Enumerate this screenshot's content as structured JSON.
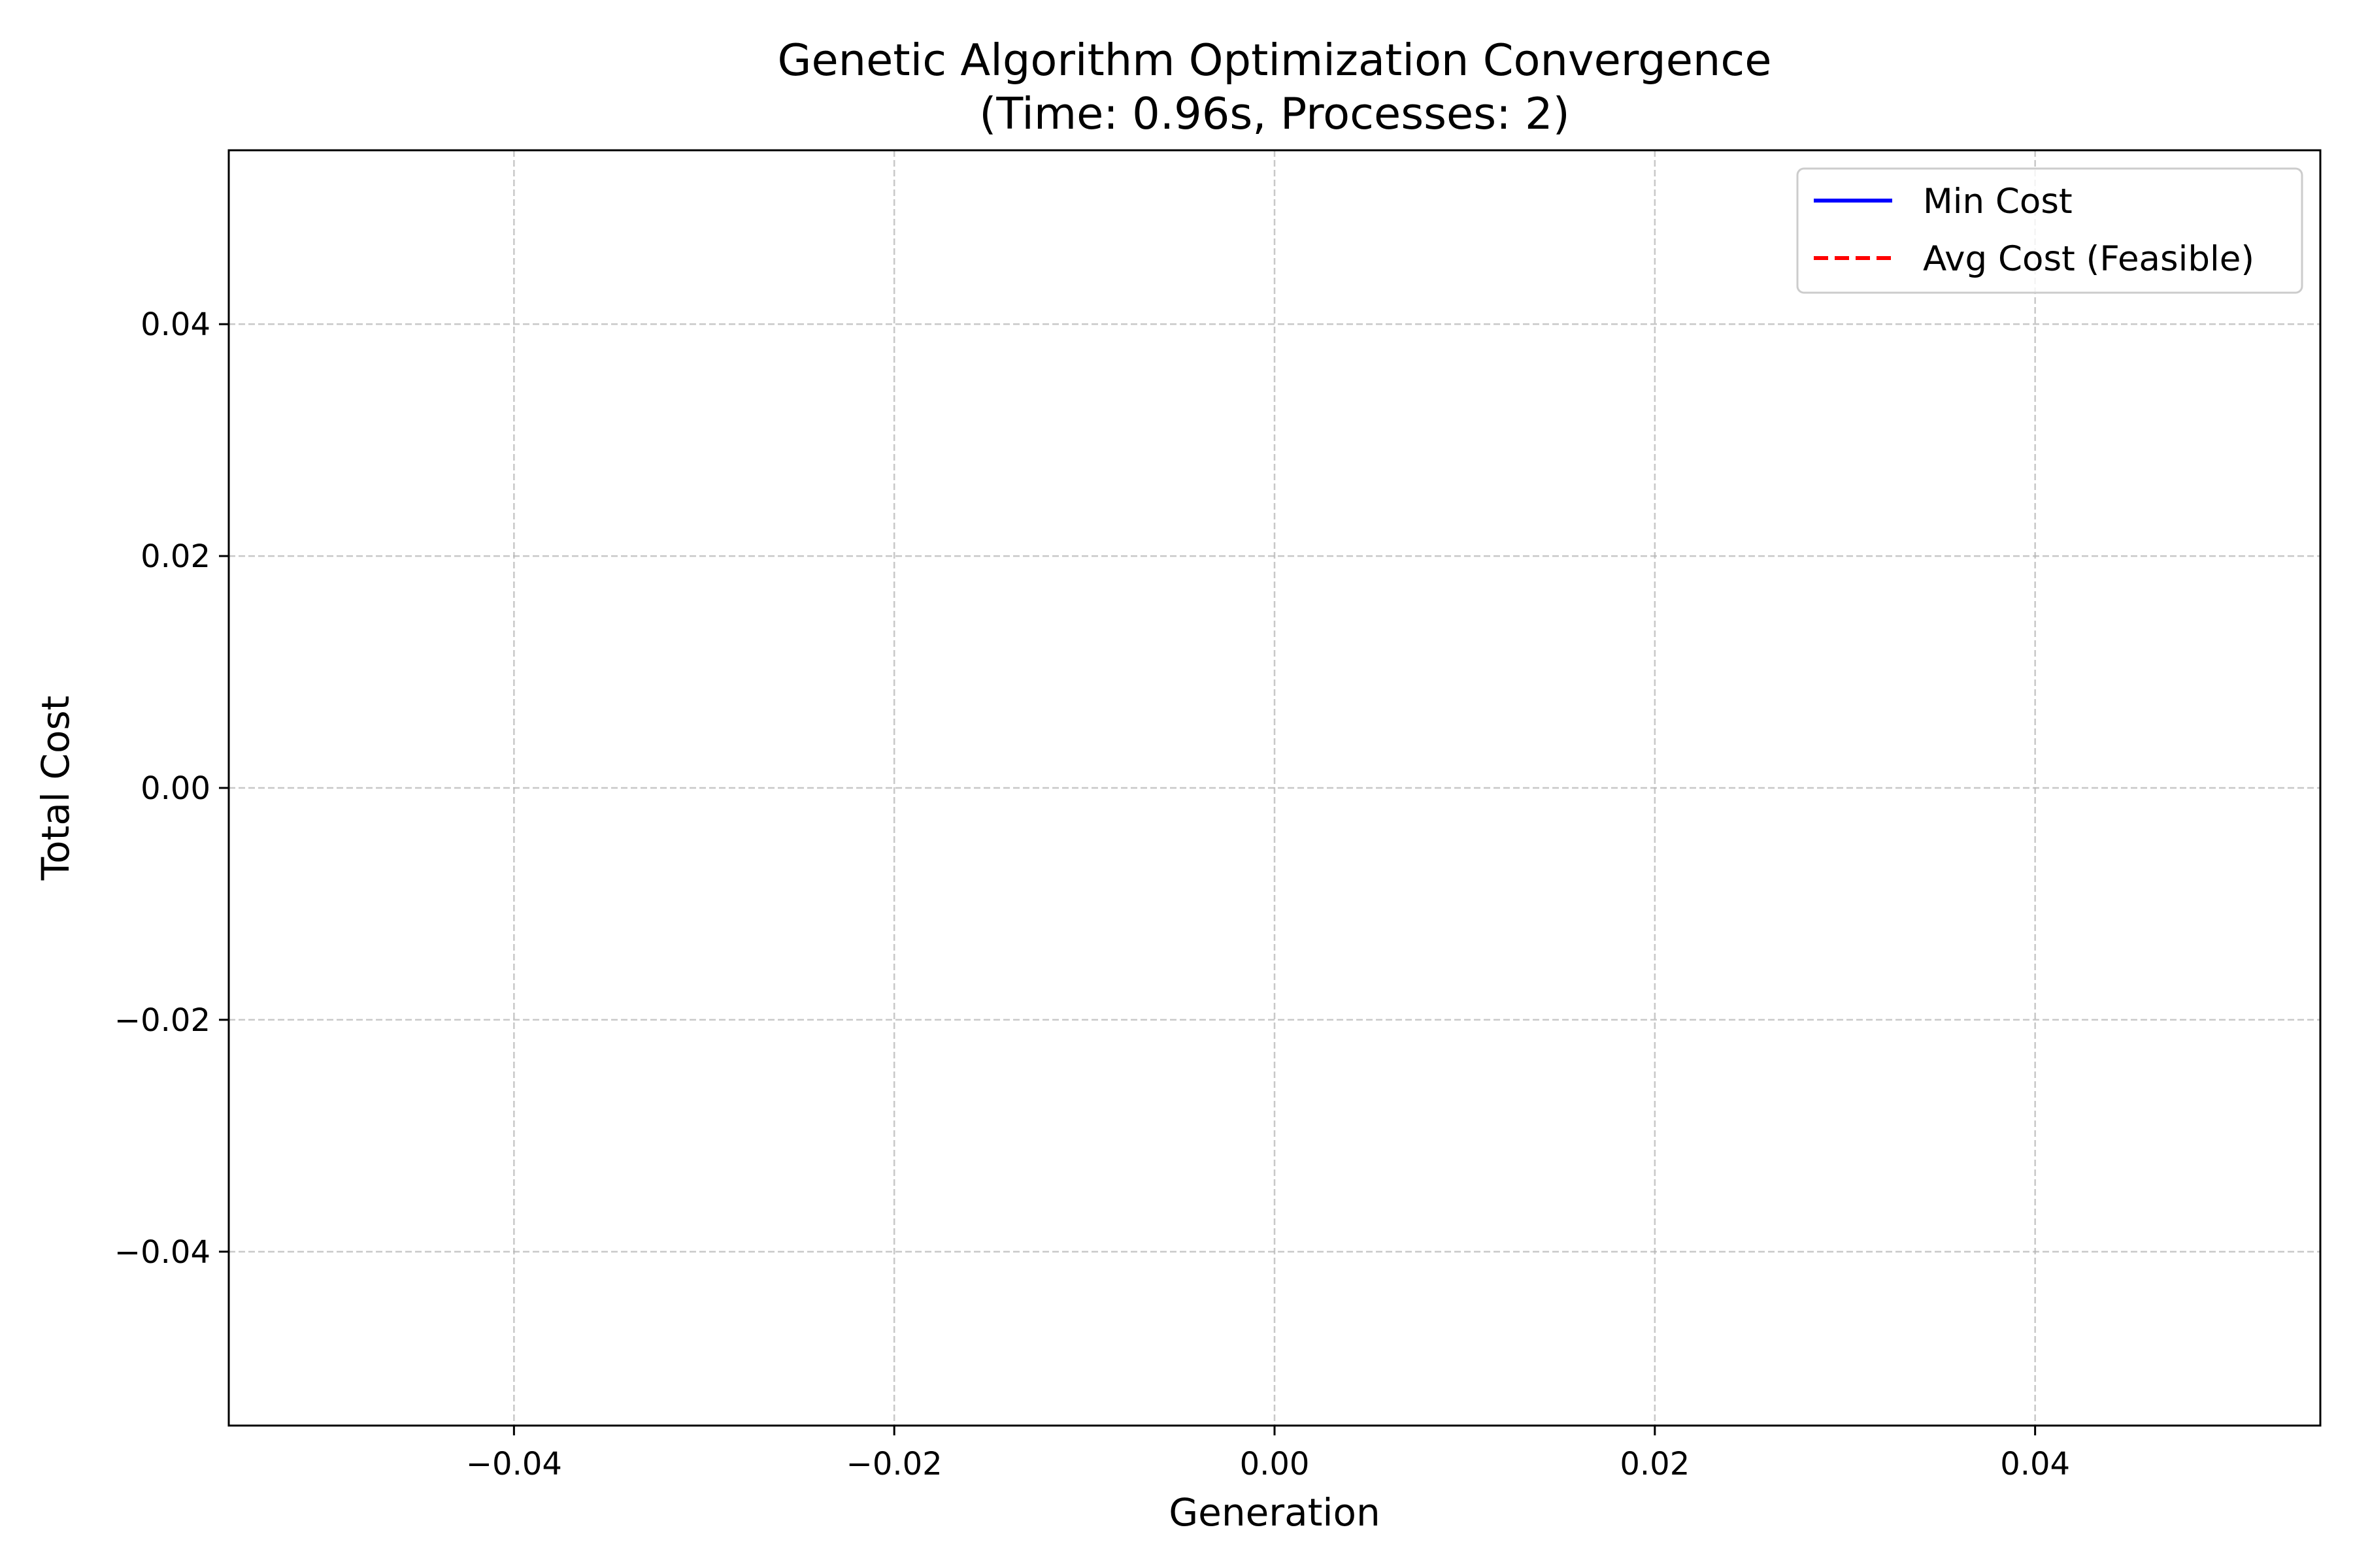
{
  "chart_data": {
    "type": "line",
    "title": "Genetic Algorithm Optimization Convergence",
    "subtitle": "(Time: 0.96s, Processes: 2)",
    "xlabel": "Generation",
    "ylabel": "Total Cost",
    "xlim": [
      -0.055,
      0.055
    ],
    "ylim": [
      -0.055,
      0.055
    ],
    "xticks": [
      -0.04,
      -0.02,
      0.0,
      0.02,
      0.04
    ],
    "yticks": [
      -0.04,
      -0.02,
      0.0,
      0.02,
      0.04
    ],
    "xtick_labels": [
      "−0.04",
      "−0.02",
      "0.00",
      "0.02",
      "0.04"
    ],
    "ytick_labels": [
      "−0.04",
      "−0.02",
      "0.00",
      "0.02",
      "0.04"
    ],
    "grid": true,
    "legend_position": "top-right",
    "series": [
      {
        "name": "Min Cost",
        "color": "#0000ff",
        "style": "solid",
        "x": [],
        "y": []
      },
      {
        "name": "Avg Cost (Feasible)",
        "color": "#ff0000",
        "style": "dashed",
        "x": [],
        "y": []
      }
    ]
  }
}
